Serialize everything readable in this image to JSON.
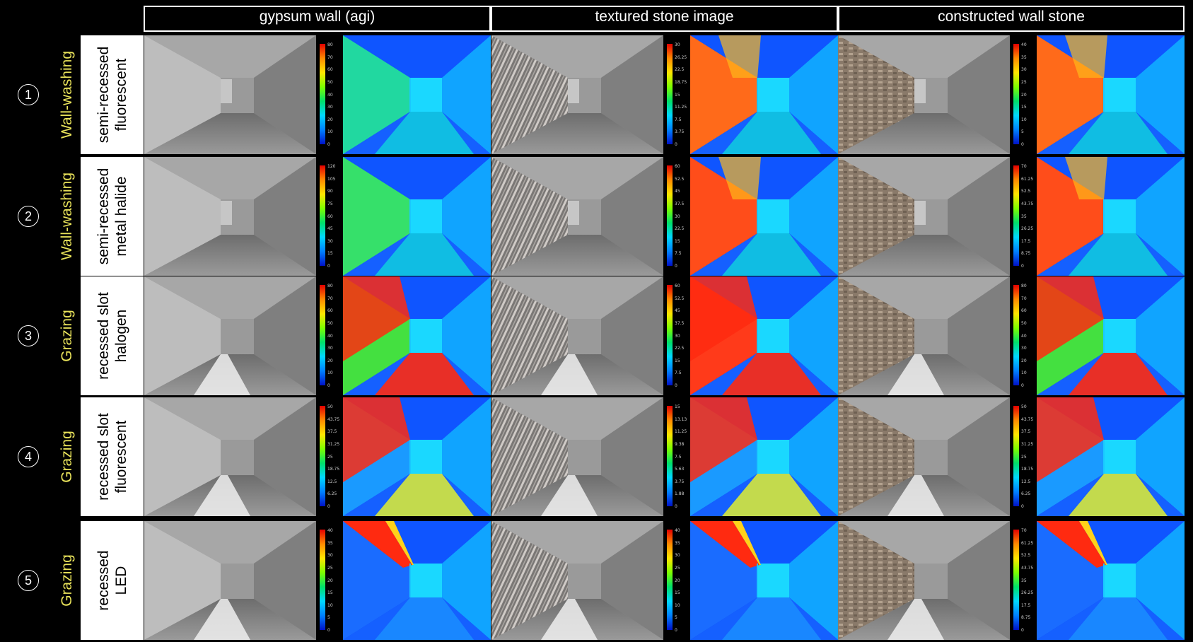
{
  "columns": [
    {
      "label": "gypsum wall (agi)"
    },
    {
      "label": "textured stone image"
    },
    {
      "label": "constructed wall stone"
    }
  ],
  "rows": [
    {
      "num": "1",
      "strategy": "Wall-washing",
      "fixture_line1": "semi-recessed",
      "fixture_line2": "fluorescent",
      "scales": [
        [
          "80",
          "70",
          "60",
          "50",
          "40",
          "30",
          "20",
          "10",
          "0"
        ],
        [
          "30",
          "26.25",
          "22.5",
          "18.75",
          "15",
          "11.25",
          "7.5",
          "3.75",
          "0"
        ],
        [
          "40",
          "35",
          "30",
          "25",
          "20",
          "15",
          "10",
          "5",
          "0"
        ]
      ]
    },
    {
      "num": "2",
      "strategy": "Wall-washing",
      "fixture_line1": "semi-recessed",
      "fixture_line2": "metal halide",
      "scales": [
        [
          "120",
          "105",
          "90",
          "75",
          "60",
          "45",
          "30",
          "15",
          "0"
        ],
        [
          "60",
          "52.5",
          "45",
          "37.5",
          "30",
          "22.5",
          "15",
          "7.5",
          "0"
        ],
        [
          "70",
          "61.25",
          "52.5",
          "43.75",
          "35",
          "26.25",
          "17.5",
          "8.75",
          "0"
        ]
      ]
    },
    {
      "num": "3",
      "strategy": "Grazing",
      "fixture_line1": "recessed slot",
      "fixture_line2": "halogen",
      "scales": [
        [
          "80",
          "70",
          "60",
          "50",
          "40",
          "30",
          "20",
          "10",
          "0"
        ],
        [
          "60",
          "52.5",
          "45",
          "37.5",
          "30",
          "22.5",
          "15",
          "7.5",
          "0"
        ],
        [
          "80",
          "70",
          "60",
          "50",
          "40",
          "30",
          "20",
          "10",
          "0"
        ]
      ]
    },
    {
      "num": "4",
      "strategy": "Grazing",
      "fixture_line1": "recessed slot",
      "fixture_line2": "fluorescent",
      "scales": [
        [
          "50",
          "43.75",
          "37.5",
          "31.25",
          "25",
          "18.75",
          "12.5",
          "6.25",
          "0"
        ],
        [
          "15",
          "13.13",
          "11.25",
          "9.38",
          "7.5",
          "5.63",
          "3.75",
          "1.88",
          "0"
        ],
        [
          "50",
          "43.75",
          "37.5",
          "31.25",
          "25",
          "18.75",
          "12.5",
          "6.25",
          "0"
        ]
      ]
    },
    {
      "num": "5",
      "strategy": "Grazing",
      "fixture_line1": "recessed",
      "fixture_line2": "LED",
      "scales": [
        [
          "40",
          "35",
          "30",
          "25",
          "20",
          "15",
          "10",
          "5",
          "0"
        ],
        [
          "40",
          "35",
          "30",
          "25",
          "20",
          "15",
          "10",
          "5",
          "0"
        ],
        [
          "70",
          "61.25",
          "52.5",
          "43.75",
          "35",
          "26.25",
          "17.5",
          "8.75",
          "0"
        ]
      ]
    }
  ],
  "colors": {
    "strategy": "#e8e25a"
  }
}
